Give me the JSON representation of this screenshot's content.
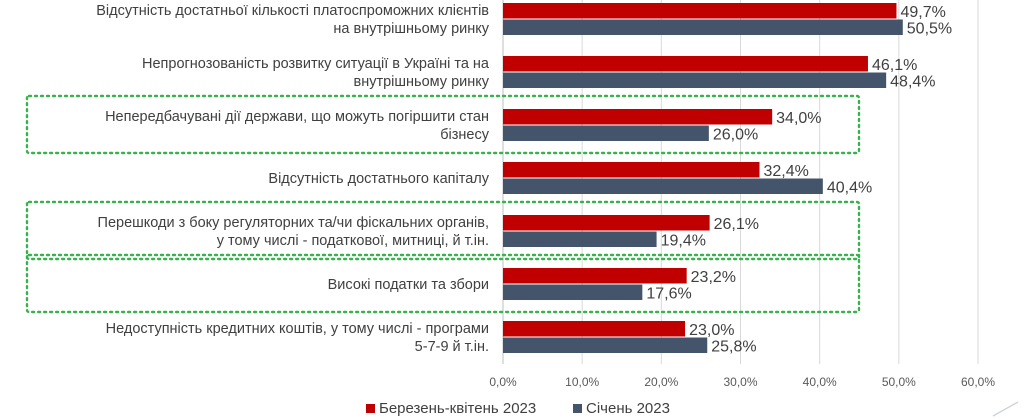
{
  "chart_data": {
    "type": "bar",
    "orientation": "horizontal",
    "categories": [
      [
        "Відсутність достатньої кількості платоспроможних клієнтів",
        "на внутрішньому ринку"
      ],
      [
        "Непрогнозованість розвитку ситуації в Україні та на",
        "внутрішньому ринку"
      ],
      [
        "Непередбачувані дії держави, що можуть погіршити стан",
        "бізнесу"
      ],
      [
        "Відсутність достатнього капіталу"
      ],
      [
        "Перешкоди з боку регуляторних та/чи фіскальних органів,",
        "у тому числі - податкової, митниці, й т.ін."
      ],
      [
        "Високі податки та збори"
      ],
      [
        "Недоступність кредитних коштів, у тому числі - програми",
        "5-7-9 й т.ін."
      ]
    ],
    "series": [
      {
        "name": "Березень-квітень 2023",
        "color": "#c00000",
        "values": [
          49.7,
          46.1,
          34.0,
          32.4,
          26.1,
          23.2,
          23.0
        ],
        "labels": [
          "49,7%",
          "46,1%",
          "34,0%",
          "32,4%",
          "26,1%",
          "23,2%",
          "23,0%"
        ]
      },
      {
        "name": "Січень 2023",
        "color": "#44546a",
        "values": [
          50.5,
          48.4,
          26.0,
          40.4,
          19.4,
          17.6,
          25.8
        ],
        "labels": [
          "50,5%",
          "48,4%",
          "26,0%",
          "40,4%",
          "19,4%",
          "17,6%",
          "25,8%"
        ]
      }
    ],
    "x_ticks": [
      0,
      10,
      20,
      30,
      40,
      50,
      60
    ],
    "x_tick_labels": [
      "0,0%",
      "10,0%",
      "20,0%",
      "30,0%",
      "40,0%",
      "50,0%",
      "60,0%"
    ],
    "xlim": [
      0,
      60
    ],
    "grid": true,
    "legend_position": "bottom",
    "highlighted_categories": [
      2,
      4,
      5
    ],
    "highlight_color": "#37b24d"
  }
}
